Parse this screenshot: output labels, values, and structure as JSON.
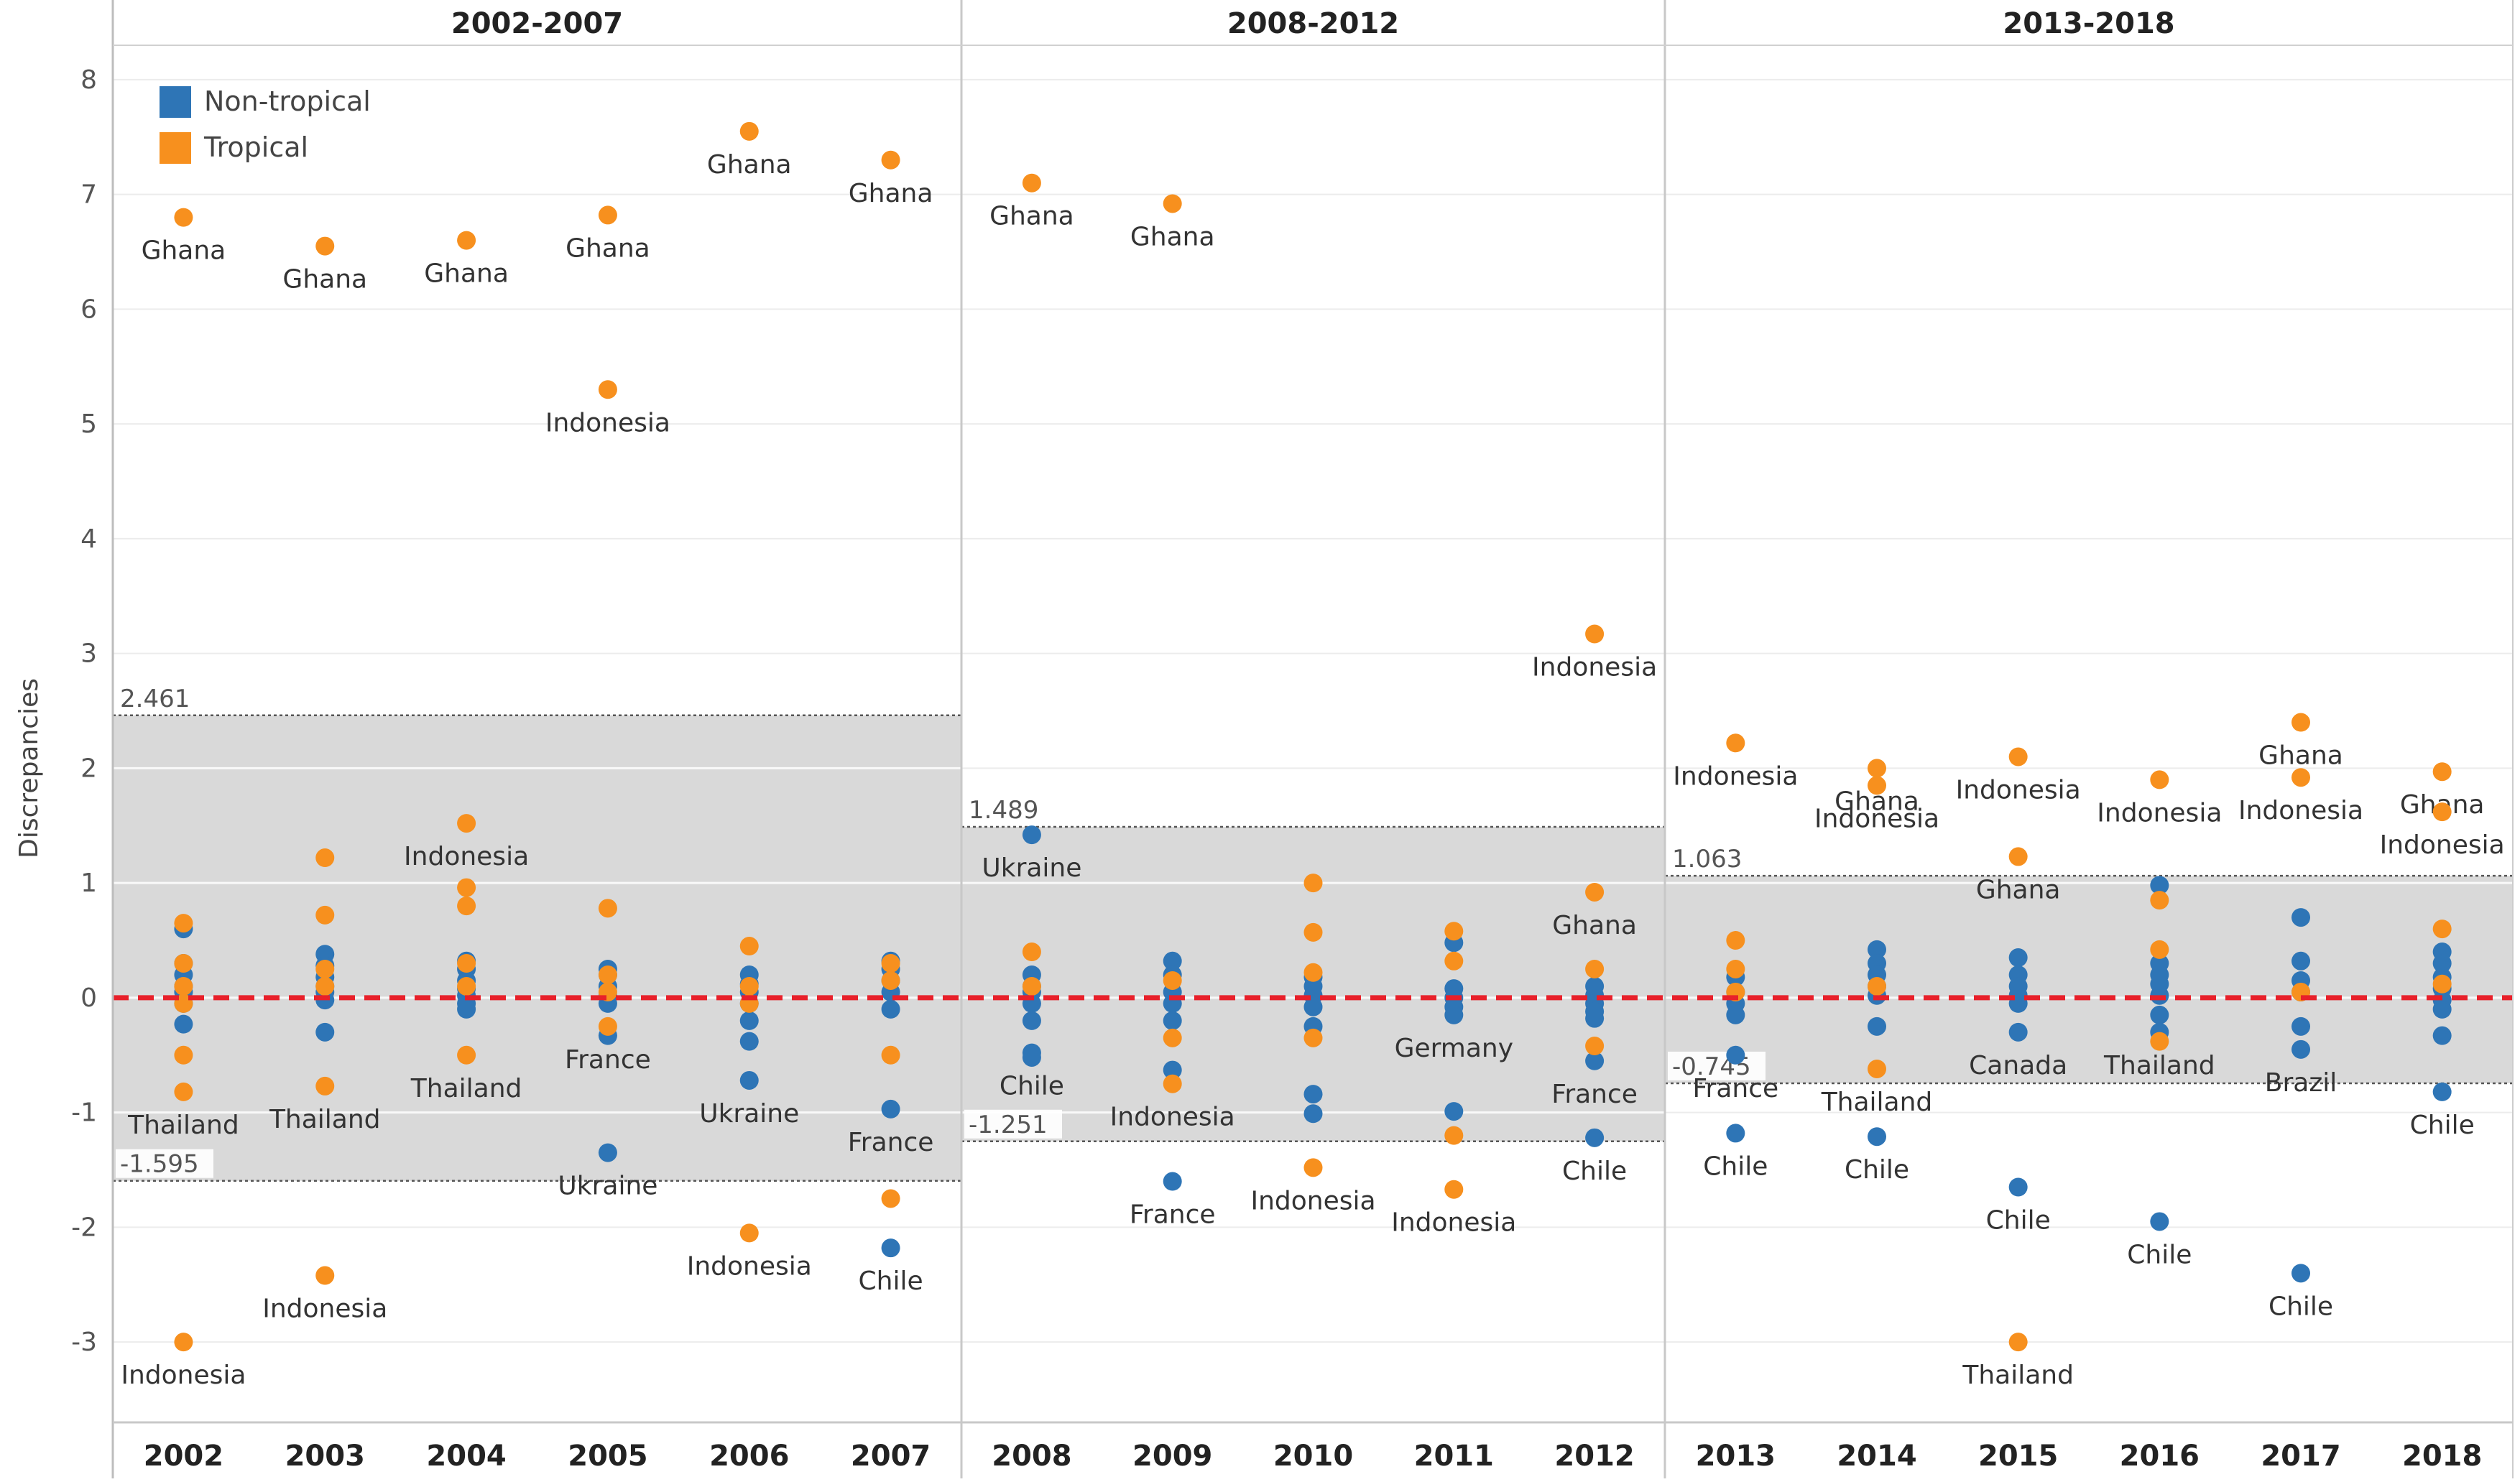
{
  "chart_data": {
    "type": "scatter",
    "ylabel": "Discrepancies",
    "ylim": [
      -3.7,
      8.3
    ],
    "yticks": [
      -3,
      -2,
      -1,
      0,
      1,
      2,
      3,
      4,
      5,
      6,
      7,
      8
    ],
    "zero_line": 0,
    "legend": {
      "placement": "top-left",
      "entries": [
        {
          "name": "Non-tropical",
          "color": "#2E75B6"
        },
        {
          "name": "Tropical",
          "color": "#F7901E"
        }
      ]
    },
    "colors": {
      "non_tropical": "#2E75B6",
      "tropical": "#F7901E",
      "zero_line": "#E8202A",
      "band": "#D9D9D9"
    },
    "panels": [
      {
        "title": "2002-2007",
        "band": {
          "upper": 2.461,
          "lower": -1.595,
          "upper_label": "2.461",
          "lower_label": "-1.595"
        },
        "years": [
          {
            "year": "2002",
            "tropical": [
              {
                "y": 6.8,
                "label": "Ghana"
              },
              {
                "y": 0.65
              },
              {
                "y": 0.3
              },
              {
                "y": 0.1
              },
              {
                "y": -0.05
              },
              {
                "y": -0.5
              },
              {
                "y": -0.82,
                "label": "Thailand"
              },
              {
                "y": -3.0,
                "label": "Indonesia"
              }
            ],
            "non_tropical": [
              {
                "y": 0.6
              },
              {
                "y": 0.3
              },
              {
                "y": 0.2
              },
              {
                "y": 0.1
              },
              {
                "y": 0.05
              },
              {
                "y": -0.05
              },
              {
                "y": -0.23
              }
            ]
          },
          {
            "year": "2003",
            "tropical": [
              {
                "y": 6.55,
                "label": "Ghana"
              },
              {
                "y": 1.22
              },
              {
                "y": 0.72
              },
              {
                "y": 0.25
              },
              {
                "y": 0.1
              },
              {
                "y": -0.77,
                "label": "Thailand"
              },
              {
                "y": -2.42,
                "label": "Indonesia"
              }
            ],
            "non_tropical": [
              {
                "y": 0.38
              },
              {
                "y": 0.28
              },
              {
                "y": 0.18
              },
              {
                "y": 0.1
              },
              {
                "y": 0.05
              },
              {
                "y": -0.02
              },
              {
                "y": -0.3
              }
            ]
          },
          {
            "year": "2004",
            "tropical": [
              {
                "y": 6.6,
                "label": "Ghana"
              },
              {
                "y": 1.52,
                "label": "Indonesia"
              },
              {
                "y": 0.96
              },
              {
                "y": 0.8
              },
              {
                "y": 0.3
              },
              {
                "y": 0.1
              },
              {
                "y": -0.5,
                "label": "Thailand"
              }
            ],
            "non_tropical": [
              {
                "y": 0.32
              },
              {
                "y": 0.25
              },
              {
                "y": 0.15
              },
              {
                "y": 0.08
              },
              {
                "y": 0.02
              },
              {
                "y": -0.05
              },
              {
                "y": -0.1
              }
            ]
          },
          {
            "year": "2005",
            "tropical": [
              {
                "y": 6.82,
                "label": "Ghana"
              },
              {
                "y": 5.3,
                "label": "Indonesia"
              },
              {
                "y": 0.78
              },
              {
                "y": 0.2
              },
              {
                "y": 0.05
              },
              {
                "y": -0.25,
                "label": "France"
              }
            ],
            "non_tropical": [
              {
                "y": 0.25
              },
              {
                "y": 0.2
              },
              {
                "y": 0.1
              },
              {
                "y": 0.02
              },
              {
                "y": -0.05
              },
              {
                "y": -0.33
              },
              {
                "y": -1.35,
                "label": "Ukraine"
              }
            ]
          },
          {
            "year": "2006",
            "tropical": [
              {
                "y": 7.55,
                "label": "Ghana"
              },
              {
                "y": 0.45
              },
              {
                "y": 0.1
              },
              {
                "y": -0.05
              },
              {
                "y": -2.05,
                "label": "Indonesia"
              }
            ],
            "non_tropical": [
              {
                "y": 0.2
              },
              {
                "y": 0.12
              },
              {
                "y": 0.05
              },
              {
                "y": -0.05
              },
              {
                "y": -0.2
              },
              {
                "y": -0.38
              },
              {
                "y": -0.72,
                "label": "Ukraine"
              }
            ]
          },
          {
            "year": "2007",
            "tropical": [
              {
                "y": 7.3,
                "label": "Ghana"
              },
              {
                "y": 0.3
              },
              {
                "y": 0.15
              },
              {
                "y": -0.5
              },
              {
                "y": -1.75
              }
            ],
            "non_tropical": [
              {
                "y": 0.32
              },
              {
                "y": 0.25
              },
              {
                "y": 0.15
              },
              {
                "y": 0.05
              },
              {
                "y": -0.1
              },
              {
                "y": -0.97,
                "label": "France"
              },
              {
                "y": -2.18,
                "label": "Chile"
              }
            ]
          }
        ]
      },
      {
        "title": "2008-2012",
        "band": {
          "upper": 1.489,
          "lower": -1.251,
          "upper_label": "1.489",
          "lower_label": "-1.251"
        },
        "years": [
          {
            "year": "2008",
            "tropical": [
              {
                "y": 7.1,
                "label": "Ghana"
              },
              {
                "y": 0.4
              },
              {
                "y": 0.1
              }
            ],
            "non_tropical": [
              {
                "y": 1.42,
                "label": "Ukraine"
              },
              {
                "y": 0.2
              },
              {
                "y": 0.1
              },
              {
                "y": 0.05
              },
              {
                "y": -0.05
              },
              {
                "y": -0.2
              },
              {
                "y": -0.48,
                "label": "Chile"
              },
              {
                "y": -0.52
              }
            ]
          },
          {
            "year": "2009",
            "tropical": [
              {
                "y": 6.92,
                "label": "Ghana"
              },
              {
                "y": 0.15
              },
              {
                "y": -0.35
              },
              {
                "y": -0.75,
                "label": "Indonesia"
              }
            ],
            "non_tropical": [
              {
                "y": 0.32
              },
              {
                "y": 0.2
              },
              {
                "y": 0.05
              },
              {
                "y": -0.05
              },
              {
                "y": -0.2
              },
              {
                "y": -0.63
              },
              {
                "y": -1.6,
                "label": "France"
              }
            ]
          },
          {
            "year": "2010",
            "tropical": [
              {
                "y": 1.0
              },
              {
                "y": 0.57
              },
              {
                "y": 0.22
              },
              {
                "y": -0.35
              },
              {
                "y": -1.48,
                "label": "Indonesia"
              }
            ],
            "non_tropical": [
              {
                "y": 0.18
              },
              {
                "y": 0.1
              },
              {
                "y": 0.02
              },
              {
                "y": -0.08
              },
              {
                "y": -0.25
              },
              {
                "y": -0.84
              },
              {
                "y": -1.01
              }
            ]
          },
          {
            "year": "2011",
            "tropical": [
              {
                "y": 0.58
              },
              {
                "y": 0.32
              },
              {
                "y": -1.2
              },
              {
                "y": -1.67,
                "label": "Indonesia"
              }
            ],
            "non_tropical": [
              {
                "y": 0.48
              },
              {
                "y": 0.08
              },
              {
                "y": 0.0
              },
              {
                "y": -0.08
              },
              {
                "y": -0.15,
                "label": "Germany"
              },
              {
                "y": -0.99
              }
            ]
          },
          {
            "year": "2012",
            "tropical": [
              {
                "y": 3.17,
                "label": "Indonesia"
              },
              {
                "y": 0.92,
                "label": "Ghana"
              },
              {
                "y": 0.25
              },
              {
                "y": -0.42
              }
            ],
            "non_tropical": [
              {
                "y": 0.1
              },
              {
                "y": 0.02
              },
              {
                "y": -0.05
              },
              {
                "y": -0.12
              },
              {
                "y": -0.18
              },
              {
                "y": -0.55,
                "label": "France"
              },
              {
                "y": -1.22,
                "label": "Chile"
              }
            ]
          }
        ]
      },
      {
        "title": "2013-2018",
        "band": {
          "upper": 1.063,
          "lower": -0.745,
          "upper_label": "1.063",
          "lower_label": "-0.745"
        },
        "years": [
          {
            "year": "2013",
            "tropical": [
              {
                "y": 2.22,
                "label": "Indonesia"
              },
              {
                "y": 0.5
              },
              {
                "y": 0.25
              },
              {
                "y": 0.05
              }
            ],
            "non_tropical": [
              {
                "y": 0.18
              },
              {
                "y": 0.05
              },
              {
                "y": -0.05
              },
              {
                "y": -0.15
              },
              {
                "y": -0.5,
                "label": "France"
              },
              {
                "y": -1.18,
                "label": "Chile"
              }
            ]
          },
          {
            "year": "2014",
            "tropical": [
              {
                "y": 2.0,
                "label": "Ghana"
              },
              {
                "y": 1.85,
                "label": "Indonesia"
              },
              {
                "y": 0.1
              },
              {
                "y": -0.62,
                "label": "Thailand"
              }
            ],
            "non_tropical": [
              {
                "y": 0.42
              },
              {
                "y": 0.3
              },
              {
                "y": 0.2
              },
              {
                "y": 0.1
              },
              {
                "y": 0.02
              },
              {
                "y": -0.25
              },
              {
                "y": -1.21,
                "label": "Chile"
              }
            ]
          },
          {
            "year": "2015",
            "tropical": [
              {
                "y": 2.1,
                "label": "Indonesia"
              },
              {
                "y": 1.23,
                "label": "Ghana"
              },
              {
                "y": -3.0,
                "label": "Thailand"
              }
            ],
            "non_tropical": [
              {
                "y": 0.35
              },
              {
                "y": 0.2
              },
              {
                "y": 0.1
              },
              {
                "y": 0.02
              },
              {
                "y": -0.05
              },
              {
                "y": -0.3,
                "label": "Canada"
              },
              {
                "y": -1.65,
                "label": "Chile"
              }
            ]
          },
          {
            "year": "2016",
            "tropical": [
              {
                "y": 1.9,
                "label": "Indonesia"
              },
              {
                "y": 0.85
              },
              {
                "y": 0.42
              },
              {
                "y": -0.38
              }
            ],
            "non_tropical": [
              {
                "y": 0.98
              },
              {
                "y": 0.3
              },
              {
                "y": 0.2
              },
              {
                "y": 0.12
              },
              {
                "y": 0.02
              },
              {
                "y": -0.15
              },
              {
                "y": -0.3,
                "label": "Thailand"
              },
              {
                "y": -1.95,
                "label": "Chile"
              }
            ]
          },
          {
            "year": "2017",
            "tropical": [
              {
                "y": 2.4,
                "label": "Ghana"
              },
              {
                "y": 1.92,
                "label": "Indonesia"
              },
              {
                "y": 0.05
              }
            ],
            "non_tropical": [
              {
                "y": 0.7
              },
              {
                "y": 0.32
              },
              {
                "y": 0.15
              },
              {
                "y": 0.05
              },
              {
                "y": -0.25
              },
              {
                "y": -0.45,
                "label": "Brazil"
              },
              {
                "y": -2.4,
                "label": "Chile"
              }
            ]
          },
          {
            "year": "2018",
            "tropical": [
              {
                "y": 1.97,
                "label": "Ghana"
              },
              {
                "y": 1.62,
                "label": "Indonesia"
              },
              {
                "y": 0.6
              },
              {
                "y": 0.12
              }
            ],
            "non_tropical": [
              {
                "y": 0.4
              },
              {
                "y": 0.3
              },
              {
                "y": 0.18
              },
              {
                "y": 0.08
              },
              {
                "y": -0.02
              },
              {
                "y": -0.1
              },
              {
                "y": -0.33
              },
              {
                "y": -0.82,
                "label": "Chile"
              }
            ]
          }
        ]
      }
    ]
  }
}
